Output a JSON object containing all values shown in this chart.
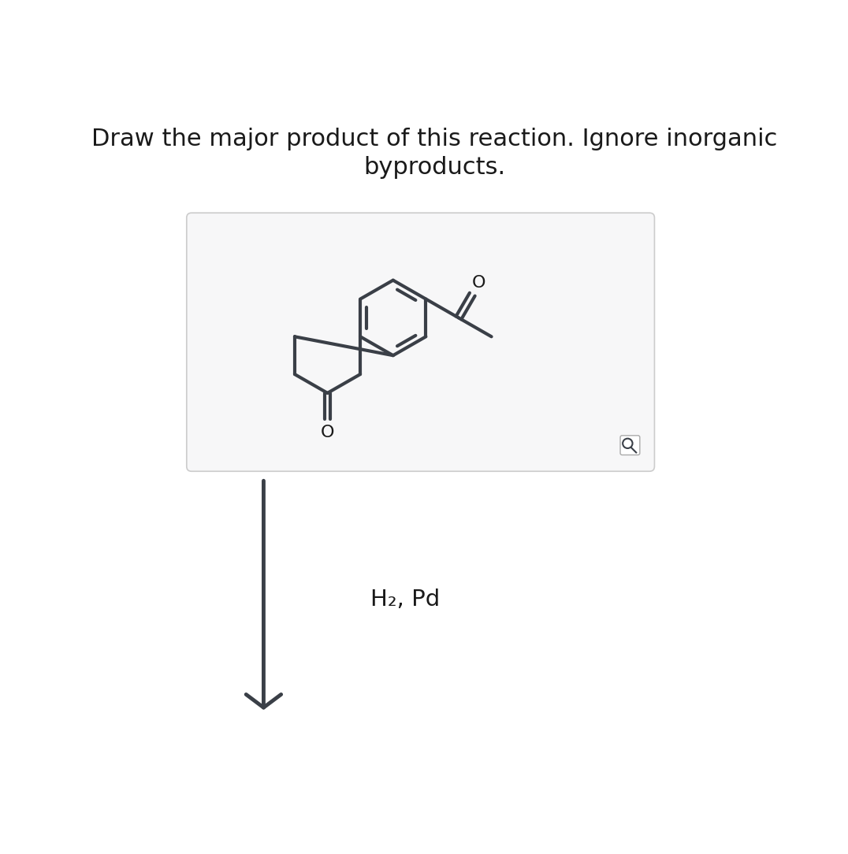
{
  "title_line1": "Draw the major product of this reaction. Ignore inorganic",
  "title_line2": "byproducts.",
  "title_fontsize": 22,
  "reagent_text": "H₂, Pd",
  "reagent_fontsize": 20,
  "bg_color": "#ffffff",
  "line_color": "#3a3f47",
  "text_color": "#1a1a1a",
  "box_bg": "#f7f7f8",
  "box_border": "#cccccc",
  "arrow_color": "#3a3f47"
}
